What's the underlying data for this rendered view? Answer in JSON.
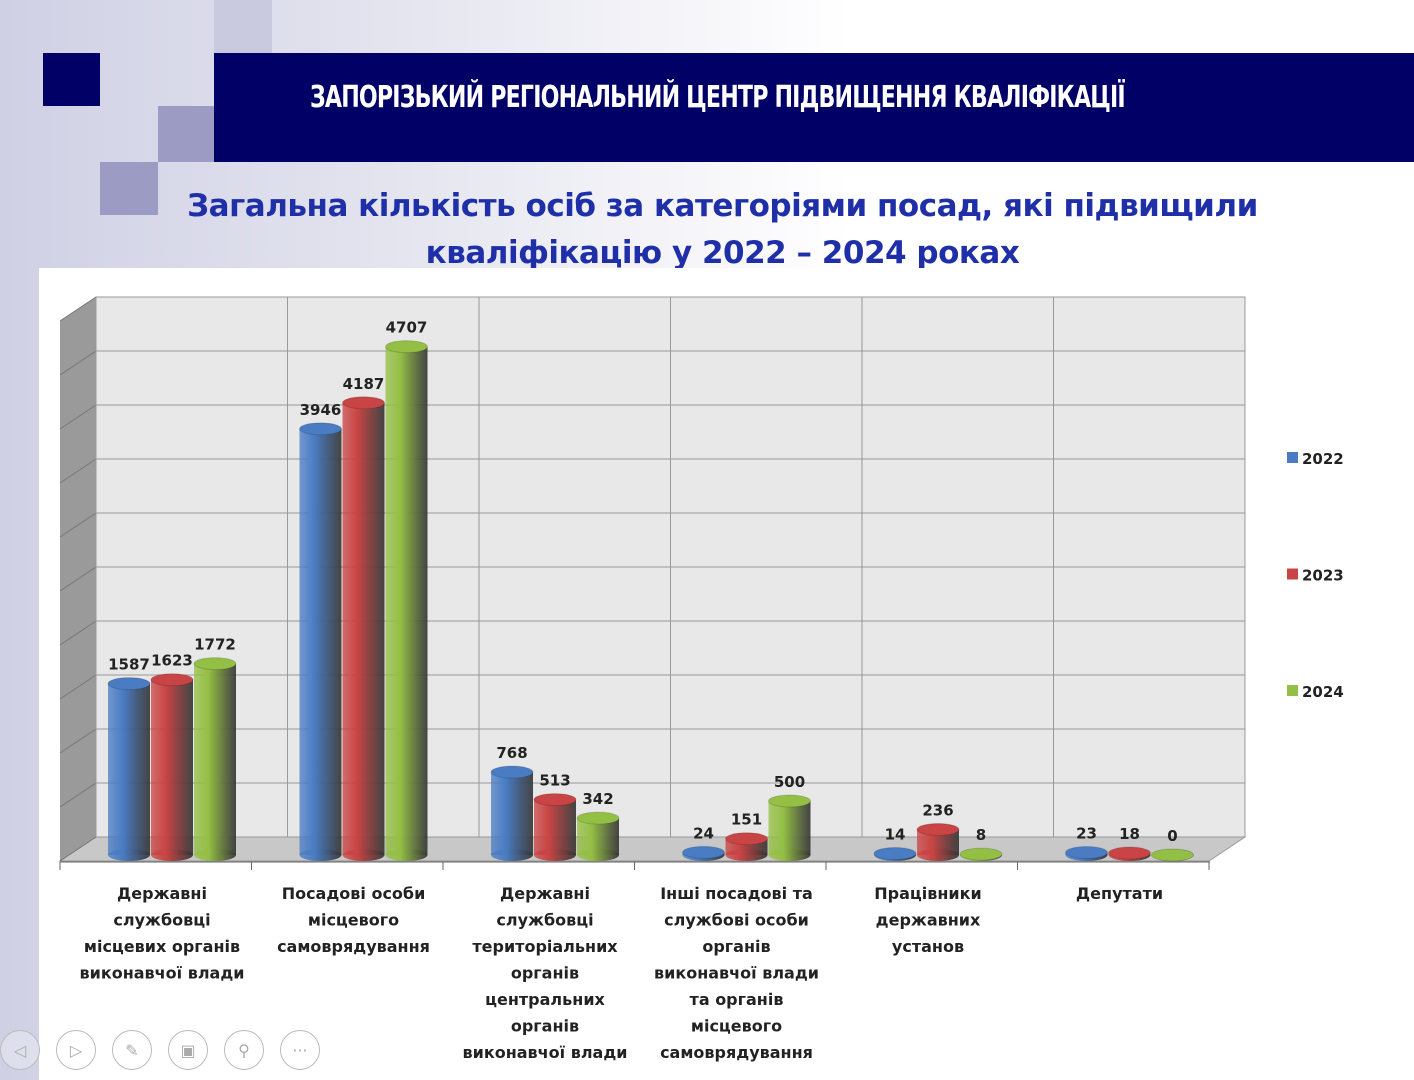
{
  "header": {
    "title": "ЗАПОРІЗЬКИЙ РЕГІОНАЛЬНИЙ ЦЕНТР ПІДВИЩЕННЯ КВАЛІФІКАЦІЇ"
  },
  "slide": {
    "title_line1": "Загальна кількість осіб за категоріями посад, які підвищили",
    "title_line2": "кваліфікацію у 2022 – 2024 роках"
  },
  "chart_data": {
    "type": "bar",
    "title": "Загальна кількість осіб за категоріями посад, які підвищили кваліфікацію у 2022 – 2024 роках",
    "categories": [
      [
        "Державні",
        "службовці",
        "місцевих органів",
        "виконавчої влади"
      ],
      [
        "Посадові особи",
        "місцевого",
        "самоврядування"
      ],
      [
        "Державні",
        "службовці",
        "територіальних",
        "органів",
        "центральних",
        "органів",
        "виконавчої влади"
      ],
      [
        "Інші посадові та",
        "службові особи",
        "органів",
        "виконавчої влади",
        "та органів",
        "місцевого",
        "самоврядування"
      ],
      [
        "Працівники",
        "державних",
        "установ"
      ],
      [
        "Депутати"
      ]
    ],
    "series": [
      {
        "name": "2022",
        "color": "#4a7cc4",
        "values": [
          1587,
          3946,
          768,
          24,
          14,
          23
        ]
      },
      {
        "name": "2023",
        "color": "#c94444",
        "values": [
          1623,
          4187,
          513,
          151,
          236,
          18
        ]
      },
      {
        "name": "2024",
        "color": "#94bf45",
        "values": [
          1772,
          4707,
          342,
          500,
          8,
          0
        ]
      }
    ],
    "ylim": [
      0,
      5000
    ],
    "grid": true,
    "legend": "right"
  },
  "toolbar": {
    "icons": [
      "previous-icon",
      "next-icon",
      "pen-icon",
      "slides-icon",
      "zoom-icon",
      "more-icon"
    ]
  }
}
